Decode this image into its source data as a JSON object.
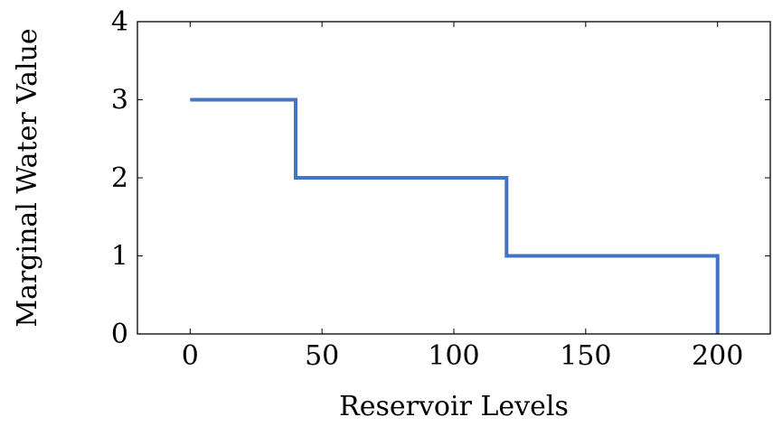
{
  "chart_data": {
    "type": "line",
    "step": true,
    "xlabel": "Reservoir Levels",
    "ylabel": "Marginal Water Value",
    "xlim": [
      -20,
      220
    ],
    "ylim": [
      0,
      4
    ],
    "xticks": [
      0,
      50,
      100,
      150,
      200
    ],
    "yticks": [
      0,
      1,
      2,
      3,
      4
    ],
    "grid": false,
    "series": [
      {
        "color": "#4472c4",
        "x": [
          0,
          40,
          40,
          120,
          120,
          200,
          200
        ],
        "y": [
          3,
          3,
          2,
          2,
          1,
          1,
          0
        ]
      }
    ]
  }
}
